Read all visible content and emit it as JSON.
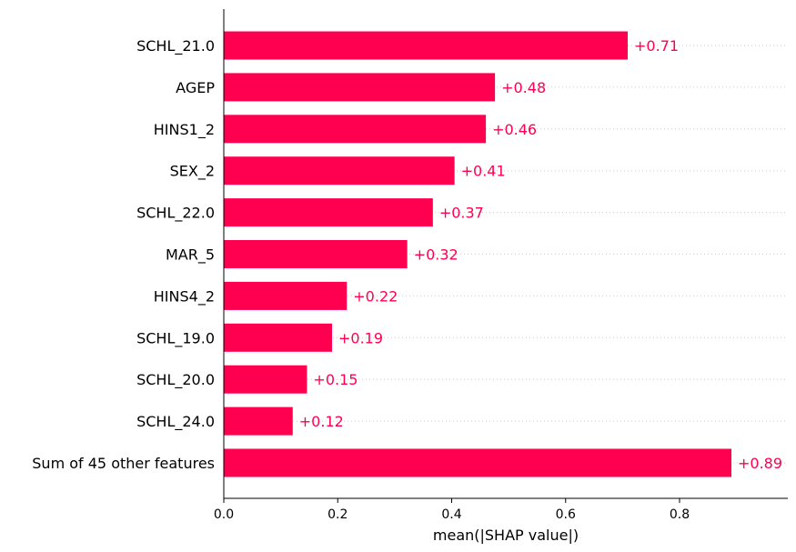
{
  "chart_data": {
    "type": "bar",
    "orientation": "horizontal",
    "categories": [
      "SCHL_21.0",
      "AGEP",
      "HINS1_2",
      "SEX_2",
      "SCHL_22.0",
      "MAR_5",
      "HINS4_2",
      "SCHL_19.0",
      "SCHL_20.0",
      "SCHL_24.0",
      "Sum of 45 other features"
    ],
    "values": [
      0.709,
      0.476,
      0.46,
      0.405,
      0.367,
      0.322,
      0.216,
      0.19,
      0.146,
      0.121,
      0.891
    ],
    "value_labels": [
      "+0.71",
      "+0.48",
      "+0.46",
      "+0.41",
      "+0.37",
      "+0.32",
      "+0.22",
      "+0.19",
      "+0.15",
      "+0.12",
      "+0.89"
    ],
    "xlabel": "mean(|SHAP value|)",
    "ylabel": "",
    "title": "",
    "xlim": [
      0,
      0.99
    ],
    "xticks": [
      0.0,
      0.2,
      0.4,
      0.6,
      0.8
    ],
    "xtick_labels": [
      "0.0",
      "0.2",
      "0.4",
      "0.6",
      "0.8"
    ],
    "grid": "dotted horizontal guide lines",
    "colors": {
      "bar": "#ff0051",
      "value_label": "#ff0051",
      "guide": "#cccccc",
      "axis": "#000000"
    }
  }
}
